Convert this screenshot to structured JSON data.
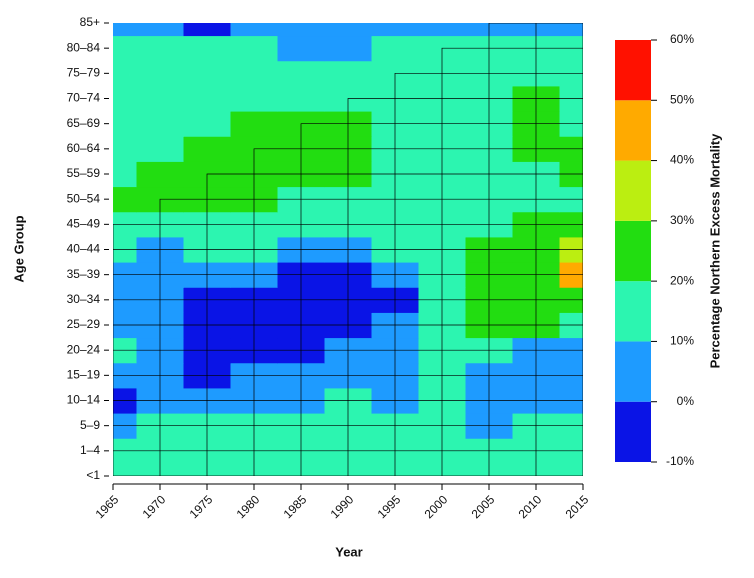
{
  "chart_data": {
    "type": "heatmap",
    "x_label": "Year",
    "y_label": "Age Group",
    "colorbar_label": "Percentage Northern Excess Mortality",
    "categories": [
      "<1",
      "1–4",
      "5–9",
      "10–14",
      "15–19",
      "20–24",
      "25–29",
      "30–34",
      "35–39",
      "40–44",
      "45–49",
      "50–54",
      "55–59",
      "60–64",
      "65–69",
      "70–74",
      "75–79",
      "80–84",
      "85+"
    ],
    "x": [
      1965,
      1970,
      1975,
      1980,
      1985,
      1990,
      1995,
      2000,
      2005,
      2010,
      2015
    ],
    "xlim": [
      1965,
      2015
    ],
    "xticks": [
      1965,
      1970,
      1975,
      1980,
      1985,
      1990,
      1995,
      2000,
      2005,
      2010,
      2015
    ],
    "z": [
      [
        12,
        15,
        15,
        15,
        15,
        15,
        15,
        15,
        15,
        12,
        15
      ],
      [
        12,
        15,
        12,
        15,
        12,
        15,
        15,
        12,
        15,
        12,
        15
      ],
      [
        5,
        12,
        15,
        12,
        15,
        15,
        15,
        12,
        5,
        15,
        12
      ],
      [
        -2,
        5,
        8,
        5,
        5,
        12,
        5,
        15,
        5,
        5,
        5
      ],
      [
        5,
        5,
        -2,
        5,
        5,
        5,
        5,
        15,
        5,
        5,
        5
      ],
      [
        12,
        5,
        -5,
        -5,
        -5,
        5,
        5,
        12,
        12,
        5,
        5
      ],
      [
        5,
        5,
        -5,
        -5,
        -8,
        -5,
        5,
        15,
        25,
        22,
        15
      ],
      [
        5,
        5,
        -2,
        -2,
        -5,
        -5,
        -5,
        15,
        25,
        28,
        28
      ],
      [
        8,
        5,
        5,
        5,
        -2,
        -5,
        5,
        15,
        22,
        28,
        45
      ],
      [
        12,
        8,
        12,
        15,
        5,
        5,
        12,
        15,
        22,
        25,
        35
      ],
      [
        15,
        15,
        15,
        15,
        15,
        15,
        15,
        15,
        18,
        22,
        25
      ],
      [
        22,
        22,
        22,
        22,
        15,
        15,
        15,
        15,
        15,
        18,
        18
      ],
      [
        15,
        22,
        22,
        22,
        22,
        22,
        15,
        15,
        15,
        15,
        22
      ],
      [
        15,
        15,
        22,
        22,
        22,
        22,
        15,
        15,
        15,
        22,
        22
      ],
      [
        15,
        15,
        15,
        22,
        22,
        22,
        15,
        15,
        15,
        22,
        15
      ],
      [
        15,
        15,
        15,
        15,
        15,
        15,
        15,
        15,
        15,
        22,
        15
      ],
      [
        15,
        15,
        15,
        15,
        15,
        15,
        15,
        15,
        15,
        15,
        15
      ],
      [
        15,
        15,
        15,
        15,
        5,
        5,
        15,
        15,
        15,
        15,
        15
      ],
      [
        5,
        5,
        -2,
        5,
        5,
        5,
        5,
        5,
        5,
        5,
        5
      ]
    ],
    "levels": [
      -10,
      0,
      10,
      20,
      30,
      40,
      50,
      60
    ],
    "colors": [
      "#0a14e6",
      "#1e9bff",
      "#2cf5b0",
      "#22dd11",
      "#bbee11",
      "#ffaa00",
      "#ff1100"
    ],
    "clim": [
      -10,
      60
    ],
    "cticks": [
      {
        "value": -10,
        "label": "-10%"
      },
      {
        "value": 0,
        "label": "0%"
      },
      {
        "value": 10,
        "label": "10%"
      },
      {
        "value": 20,
        "label": "20%"
      },
      {
        "value": 30,
        "label": "30%"
      },
      {
        "value": 40,
        "label": "40%"
      },
      {
        "value": 50,
        "label": "50%"
      },
      {
        "value": 60,
        "label": "60%"
      }
    ]
  }
}
